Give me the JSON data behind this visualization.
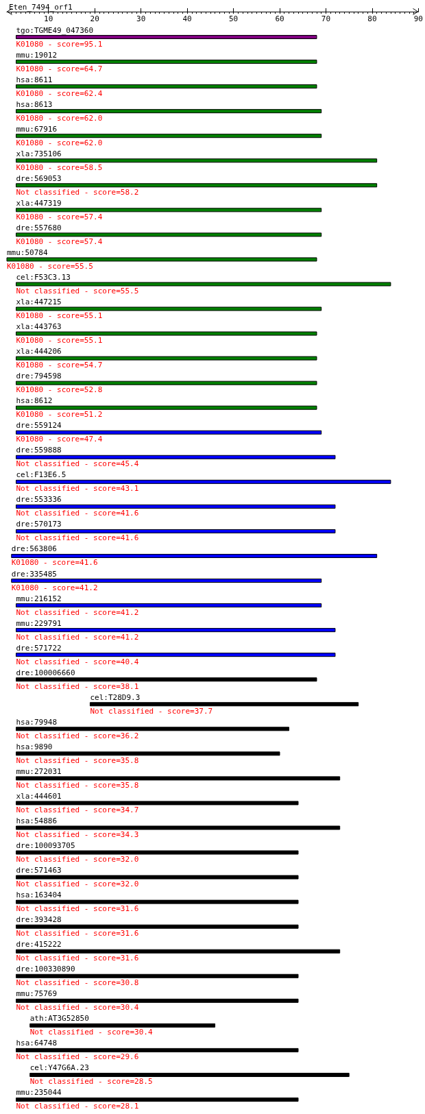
{
  "chart_data": {
    "type": "bar",
    "orientation": "horizontal",
    "title": "Eten_7494_orf1",
    "categories": [
      "tgo:TGME49_047360",
      "mmu:19012",
      "hsa:8611",
      "hsa:8613",
      "mmu:67916",
      "xla:735106",
      "dre:569053",
      "xla:447319",
      "dre:557680",
      "mmu:50784",
      "cel:F53C3.13",
      "xla:447215",
      "xla:443763",
      "xla:444206",
      "dre:794598",
      "hsa:8612",
      "dre:559124",
      "dre:559888",
      "cel:F13E6.5",
      "dre:553336",
      "dre:570173",
      "dre:563806",
      "dre:335485",
      "mmu:216152",
      "mmu:229791",
      "dre:571722",
      "dre:100006660",
      "cel:T28D9.3",
      "hsa:79948",
      "hsa:9890",
      "mmu:272031",
      "xla:444601",
      "hsa:54886",
      "dre:100093705",
      "dre:571463",
      "hsa:163404",
      "dre:393428",
      "dre:415222",
      "dre:100330890",
      "mmu:75769",
      "ath:AT3G52850",
      "hsa:64748",
      "cel:Y47G6A.23",
      "mmu:235044"
    ],
    "base": [
      3,
      3,
      3,
      3,
      3,
      3,
      3,
      3,
      3,
      1,
      3,
      3,
      3,
      3,
      3,
      3,
      3,
      3,
      3,
      3,
      3,
      2,
      2,
      3,
      3,
      3,
      3,
      19,
      3,
      3,
      3,
      3,
      3,
      3,
      3,
      3,
      3,
      3,
      3,
      3,
      6,
      3,
      6,
      3
    ],
    "values": [
      65,
      65,
      65,
      66,
      66,
      78,
      78,
      66,
      66,
      67,
      81,
      66,
      65,
      65,
      65,
      65,
      66,
      69,
      81,
      69,
      69,
      79,
      67,
      66,
      69,
      69,
      65,
      58,
      59,
      57,
      70,
      61,
      70,
      61,
      61,
      61,
      61,
      70,
      61,
      61,
      40,
      61,
      69,
      61
    ],
    "colors": [
      "#800080",
      "#008000",
      "#008000",
      "#008000",
      "#008000",
      "#008000",
      "#008000",
      "#008000",
      "#008000",
      "#008000",
      "#008000",
      "#008000",
      "#008000",
      "#008000",
      "#008000",
      "#008000",
      "#0000ff",
      "#0000ff",
      "#0000ff",
      "#0000ff",
      "#0000ff",
      "#0000ff",
      "#0000ff",
      "#0000ff",
      "#0000ff",
      "#0000ff",
      "#000000",
      "#000000",
      "#000000",
      "#000000",
      "#000000",
      "#000000",
      "#000000",
      "#000000",
      "#000000",
      "#000000",
      "#000000",
      "#000000",
      "#000000",
      "#000000",
      "#000000",
      "#000000",
      "#000000",
      "#000000"
    ],
    "annotations": [
      {
        "text": "K01080 - score=95.1",
        "x": 3,
        "y": "tgo:TGME49_047360"
      },
      {
        "text": "K01080 - score=64.7",
        "x": 3,
        "y": "mmu:19012"
      },
      {
        "text": "K01080 - score=62.4",
        "x": 3,
        "y": "hsa:8611"
      },
      {
        "text": "K01080 - score=62.0",
        "x": 3,
        "y": "hsa:8613"
      },
      {
        "text": "K01080 - score=62.0",
        "x": 3,
        "y": "mmu:67916"
      },
      {
        "text": "K01080 - score=58.5",
        "x": 3,
        "y": "xla:735106"
      },
      {
        "text": "Not classified - score=58.2",
        "x": 3,
        "y": "dre:569053"
      },
      {
        "text": "K01080 - score=57.4",
        "x": 3,
        "y": "xla:447319"
      },
      {
        "text": "K01080 - score=57.4",
        "x": 3,
        "y": "dre:557680"
      },
      {
        "text": "K01080 - score=55.5",
        "x": 1,
        "y": "mmu:50784"
      },
      {
        "text": "Not classified - score=55.5",
        "x": 3,
        "y": "cel:F53C3.13"
      },
      {
        "text": "K01080 - score=55.1",
        "x": 3,
        "y": "xla:447215"
      },
      {
        "text": "K01080 - score=55.1",
        "x": 3,
        "y": "xla:443763"
      },
      {
        "text": "K01080 - score=54.7",
        "x": 3,
        "y": "xla:444206"
      },
      {
        "text": "K01080 - score=52.8",
        "x": 3,
        "y": "dre:794598"
      },
      {
        "text": "K01080 - score=51.2",
        "x": 3,
        "y": "hsa:8612"
      },
      {
        "text": "K01080 - score=47.4",
        "x": 3,
        "y": "dre:559124"
      },
      {
        "text": "Not classified - score=45.4",
        "x": 3,
        "y": "dre:559888"
      },
      {
        "text": "Not classified - score=43.1",
        "x": 3,
        "y": "cel:F13E6.5"
      },
      {
        "text": "Not classified - score=41.6",
        "x": 3,
        "y": "dre:553336"
      },
      {
        "text": "Not classified - score=41.6",
        "x": 3,
        "y": "dre:570173"
      },
      {
        "text": "K01080 - score=41.6",
        "x": 2,
        "y": "dre:563806"
      },
      {
        "text": "K01080 - score=41.2",
        "x": 2,
        "y": "dre:335485"
      },
      {
        "text": "Not classified - score=41.2",
        "x": 3,
        "y": "mmu:216152"
      },
      {
        "text": "Not classified - score=41.2",
        "x": 3,
        "y": "mmu:229791"
      },
      {
        "text": "Not classified - score=40.4",
        "x": 3,
        "y": "dre:571722"
      },
      {
        "text": "Not classified - score=38.1",
        "x": 3,
        "y": "dre:100006660"
      },
      {
        "text": "Not classified - score=37.7",
        "x": 19,
        "y": "cel:T28D9.3"
      },
      {
        "text": "Not classified - score=36.2",
        "x": 3,
        "y": "hsa:79948"
      },
      {
        "text": "Not classified - score=35.8",
        "x": 3,
        "y": "hsa:9890"
      },
      {
        "text": "Not classified - score=35.8",
        "x": 3,
        "y": "mmu:272031"
      },
      {
        "text": "Not classified - score=34.7",
        "x": 3,
        "y": "xla:444601"
      },
      {
        "text": "Not classified - score=34.3",
        "x": 3,
        "y": "hsa:54886"
      },
      {
        "text": "Not classified - score=32.0",
        "x": 3,
        "y": "dre:100093705"
      },
      {
        "text": "Not classified - score=32.0",
        "x": 3,
        "y": "dre:571463"
      },
      {
        "text": "Not classified - score=31.6",
        "x": 3,
        "y": "hsa:163404"
      },
      {
        "text": "Not classified - score=31.6",
        "x": 3,
        "y": "dre:393428"
      },
      {
        "text": "Not classified - score=31.6",
        "x": 3,
        "y": "dre:415222"
      },
      {
        "text": "Not classified - score=30.8",
        "x": 3,
        "y": "dre:100330890"
      },
      {
        "text": "Not classified - score=30.4",
        "x": 3,
        "y": "mmu:75769"
      },
      {
        "text": "Not classified - score=30.4",
        "x": 6,
        "y": "ath:AT3G52850"
      },
      {
        "text": "Not classified - score=29.6",
        "x": 3,
        "y": "hsa:64748"
      },
      {
        "text": "Not classified - score=28.5",
        "x": 6,
        "y": "cel:Y47G6A.23"
      },
      {
        "text": "Not classified - score=28.1",
        "x": 3,
        "y": "mmu:235044"
      }
    ],
    "xlim": [
      1,
      90
    ],
    "xticks": [
      10,
      20,
      30,
      40,
      50,
      60,
      70,
      80,
      90
    ]
  }
}
